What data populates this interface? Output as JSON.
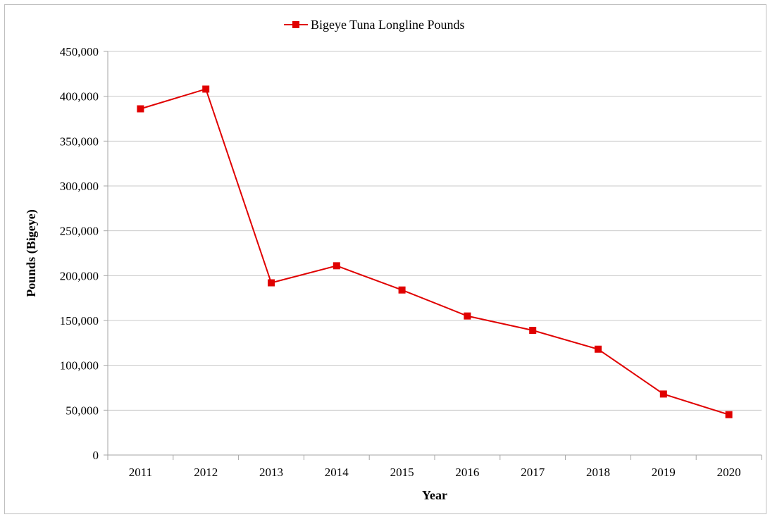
{
  "chart_data": {
    "type": "line",
    "title": "",
    "xlabel": "Year",
    "ylabel": "Pounds (Bigeye)",
    "categories": [
      "2011",
      "2012",
      "2013",
      "2014",
      "2015",
      "2016",
      "2017",
      "2018",
      "2019",
      "2020"
    ],
    "series": [
      {
        "name": "Bigeye Tuna Longline Pounds",
        "color": "#e00000",
        "marker": "square",
        "values": [
          386000,
          408000,
          192000,
          211000,
          184000,
          155000,
          139000,
          118000,
          68000,
          45000
        ]
      }
    ],
    "ylim": [
      0,
      450000
    ],
    "yticks": [
      0,
      50000,
      100000,
      150000,
      200000,
      250000,
      300000,
      350000,
      400000,
      450000
    ],
    "ytick_labels": [
      "0",
      "50,000",
      "100,000",
      "150,000",
      "200,000",
      "250,000",
      "300,000",
      "350,000",
      "400,000",
      "450,000"
    ],
    "grid": "horizontal",
    "legend_position": "top-center",
    "colors": {
      "gridline": "#c8c8c8",
      "axis": "#a6a6a6",
      "frame": "#bfbfbf"
    }
  }
}
